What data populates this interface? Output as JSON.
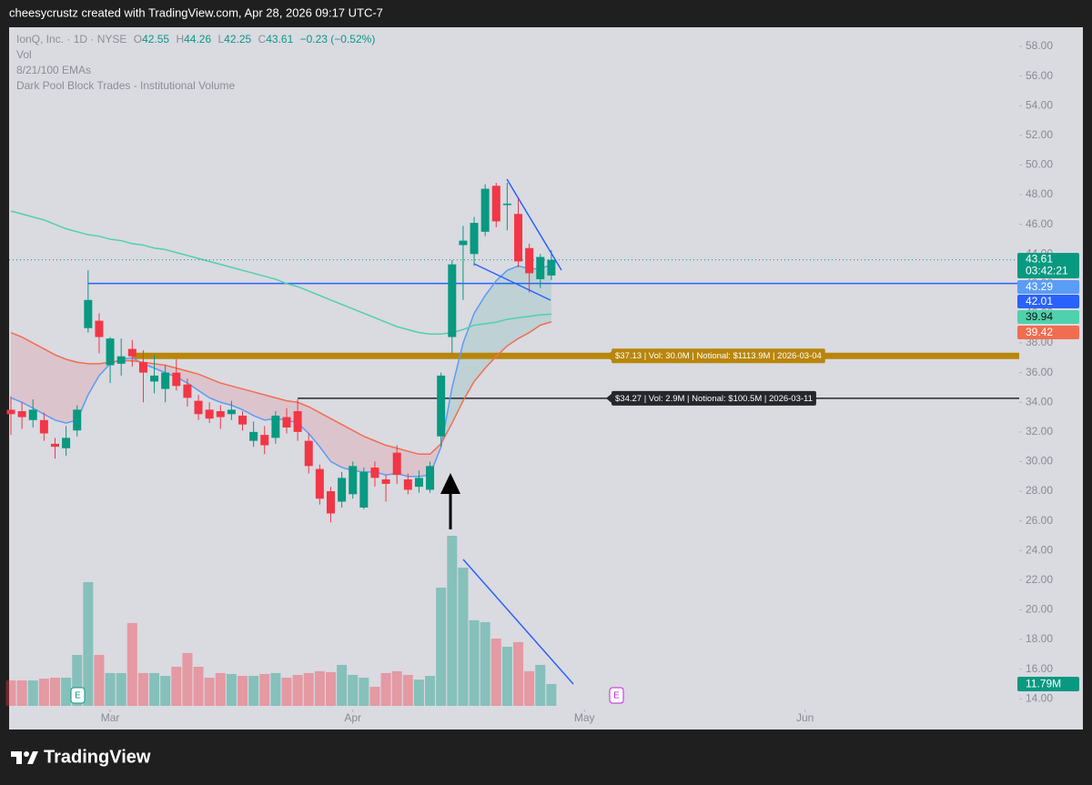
{
  "header": "cheesycrustz created with TradingView.com, Apr 28, 2026 09:17 UTC-7",
  "footer": "TradingView",
  "chart_data": {
    "type": "candlestick",
    "title": "IonQ, Inc. · 1D · NYSE",
    "ohlc_labels": [
      "O",
      "H",
      "L",
      "C"
    ],
    "change": "−0.23 (−0.52%)",
    "indicator_labels": [
      "Vol",
      "8/21/100 EMAs",
      "Dark Pool Block Trades - Institutional Volume"
    ],
    "countdown": "03:42:21",
    "annotations": [
      "E",
      "E"
    ],
    "up_color": "#089981",
    "down_color": "#f23645",
    "open": [
      33.5,
      33.4,
      32.8,
      32.8,
      31.2,
      30.9,
      32.1,
      39.0,
      39.5,
      36.5,
      36.6,
      37.6,
      36.7,
      35.4,
      34.9,
      36.0,
      35.2,
      34.1,
      33.5,
      33.4,
      33.2,
      33.1,
      31.4,
      31.8,
      31.6,
      33.0,
      33.4,
      31.4,
      29.5,
      28.0,
      27.3,
      27.8,
      26.9,
      29.6,
      28.8,
      30.6,
      28.8,
      28.3,
      28.1,
      31.7,
      38.4,
      44.6,
      44.0,
      45.5,
      48.6,
      47.3,
      46.7,
      44.4,
      42.3,
      42.55
    ],
    "high": [
      34.4,
      34.0,
      34.2,
      33.3,
      31.6,
      32.4,
      33.8,
      42.9,
      40.0,
      38.4,
      38.3,
      38.2,
      37.5,
      37.2,
      36.5,
      36.9,
      35.6,
      34.5,
      34.0,
      33.8,
      34.1,
      33.4,
      32.7,
      32.4,
      33.4,
      33.6,
      34.2,
      31.9,
      29.8,
      28.3,
      29.3,
      30.0,
      29.6,
      30.0,
      29.1,
      31.1,
      29.2,
      29.4,
      30.0,
      36.0,
      43.6,
      45.9,
      46.5,
      48.7,
      48.8,
      48.8,
      47.8,
      44.7,
      44.0,
      44.26
    ],
    "low": [
      31.8,
      32.2,
      32.3,
      31.4,
      30.2,
      30.4,
      31.7,
      38.7,
      37.3,
      35.3,
      35.8,
      36.4,
      34.0,
      34.6,
      34.0,
      34.8,
      33.7,
      32.8,
      32.6,
      32.2,
      32.8,
      32.1,
      31.0,
      30.5,
      31.2,
      31.9,
      31.4,
      29.2,
      27.1,
      25.9,
      26.9,
      27.5,
      26.8,
      28.3,
      27.3,
      28.5,
      27.8,
      27.9,
      27.9,
      31.0,
      37.3,
      40.9,
      43.2,
      45.2,
      45.8,
      45.6,
      43.1,
      41.4,
      41.7,
      42.25
    ],
    "close": [
      33.2,
      33.0,
      33.5,
      31.9,
      31.0,
      31.6,
      33.5,
      40.9,
      38.4,
      38.3,
      37.1,
      37.1,
      36.0,
      35.8,
      36.0,
      35.1,
      34.3,
      33.2,
      32.9,
      33.0,
      33.5,
      32.5,
      32.0,
      31.1,
      33.1,
      32.3,
      32.0,
      29.7,
      27.5,
      26.5,
      28.9,
      29.7,
      29.3,
      28.9,
      28.5,
      29.1,
      28.1,
      28.9,
      29.7,
      35.8,
      43.3,
      44.9,
      46.1,
      48.4,
      46.2,
      47.4,
      43.5,
      42.7,
      43.8,
      43.61
    ],
    "volume": {
      "values": [
        13.7,
        13.7,
        13.7,
        14.7,
        15.2,
        15.2,
        27.5,
        66.8,
        27.5,
        17.7,
        17.7,
        44.7,
        17.7,
        17.7,
        16.2,
        21.1,
        28.5,
        21.1,
        15.2,
        17.7,
        17.2,
        16.2,
        16.2,
        17.2,
        17.7,
        15.2,
        16.7,
        17.7,
        18.7,
        18.2,
        22.1,
        16.7,
        15.2,
        10.3,
        17.7,
        18.7,
        16.7,
        14.2,
        16.2,
        63.8,
        91.8,
        74.6,
        46.2,
        45.2,
        36.3,
        31.9,
        34.4,
        18.7,
        22.1,
        11.79
      ],
      "value_labels": [
        null,
        null,
        null,
        null,
        null,
        null,
        null,
        null,
        null,
        null,
        null,
        null,
        null,
        null,
        null,
        null,
        null,
        null,
        null,
        null,
        null,
        null,
        null,
        null,
        null,
        null,
        null,
        null,
        null,
        null,
        null,
        null,
        null,
        null,
        null,
        null,
        null,
        null,
        null,
        null,
        null,
        null,
        null,
        null,
        null,
        null,
        null,
        null,
        null,
        "11.79M"
      ]
    },
    "series": [
      {
        "color": "#5b9cf6",
        "values": [
          34.3,
          34.0,
          33.6,
          33.2,
          32.8,
          32.6,
          32.8,
          34.5,
          35.8,
          36.6,
          36.9,
          37.0,
          36.6,
          36.3,
          36.0,
          35.7,
          35.3,
          34.8,
          34.3,
          34.0,
          33.8,
          33.5,
          33.1,
          32.8,
          32.9,
          32.8,
          32.6,
          31.9,
          31.0,
          30.0,
          29.6,
          29.4,
          29.3,
          29.3,
          29.1,
          29.2,
          29.0,
          29.0,
          29.1,
          31.0,
          35.0,
          38.0,
          40.0,
          41.2,
          42.2,
          42.9,
          43.2,
          43.0,
          43.0,
          43.29
        ]
      },
      {
        "color": "#f26d4f",
        "values": [
          38.7,
          38.4,
          38.0,
          37.6,
          37.2,
          36.9,
          36.7,
          36.6,
          36.6,
          36.7,
          36.8,
          36.8,
          36.7,
          36.6,
          36.5,
          36.3,
          36.1,
          35.9,
          35.6,
          35.3,
          35.1,
          34.9,
          34.7,
          34.5,
          34.3,
          34.1,
          34.0,
          33.7,
          33.3,
          32.9,
          32.5,
          32.1,
          31.7,
          31.4,
          31.1,
          30.9,
          30.7,
          30.5,
          30.5,
          31.2,
          32.6,
          34.1,
          35.4,
          36.3,
          37.1,
          37.8,
          38.3,
          38.7,
          39.2,
          39.42
        ]
      },
      {
        "color": "#4fd1ad",
        "values": [
          46.9,
          46.7,
          46.5,
          46.3,
          46.0,
          45.7,
          45.5,
          45.3,
          45.2,
          45.0,
          44.9,
          44.7,
          44.6,
          44.4,
          44.3,
          44.1,
          43.9,
          43.7,
          43.5,
          43.3,
          43.1,
          42.9,
          42.7,
          42.5,
          42.3,
          42.0,
          41.8,
          41.5,
          41.2,
          40.9,
          40.6,
          40.3,
          40.0,
          39.7,
          39.4,
          39.1,
          38.9,
          38.7,
          38.6,
          38.6,
          38.7,
          38.9,
          39.2,
          39.3,
          39.4,
          39.6,
          39.7,
          39.8,
          39.9,
          39.94
        ]
      }
    ],
    "levels": [
      {
        "value": 42.01,
        "color": "#2962ff"
      },
      {
        "value": 37.13,
        "color": "#b8860b",
        "label": "$37.13 | Vol: 30.0M | Notional: $1113.9M | 2026-03-04"
      },
      {
        "value": 34.27,
        "color": "#26262b",
        "label": "$34.27 | Vol: 2.9M | Notional: $100.5M | 2026-03-11"
      }
    ],
    "xlim": [
      -0.165,
      91.42
    ],
    "xticks": [
      {
        "value": 9,
        "label": "Mar"
      },
      {
        "value": 31,
        "label": "Apr"
      },
      {
        "value": 52,
        "label": "May"
      },
      {
        "value": 72,
        "label": "Jun"
      }
    ],
    "ylim": [
      13.28,
      59.29
    ],
    "yticks": [
      {
        "value": 14,
        "label": "14.00"
      },
      {
        "value": 16,
        "label": "16.00"
      },
      {
        "value": 18,
        "label": "18.00"
      },
      {
        "value": 20,
        "label": "20.00"
      },
      {
        "value": 22,
        "label": "22.00"
      },
      {
        "value": 24,
        "label": "24.00"
      },
      {
        "value": 26,
        "label": "26.00"
      },
      {
        "value": 28,
        "label": "28.00"
      },
      {
        "value": 30,
        "label": "30.00"
      },
      {
        "value": 32,
        "label": "32.00"
      },
      {
        "value": 34,
        "label": "34.00"
      },
      {
        "value": 36,
        "label": "36.00"
      },
      {
        "value": 38,
        "label": "38.00"
      },
      {
        "value": 40,
        "label": "40.00"
      },
      {
        "value": 42,
        "label": "42.00"
      },
      {
        "value": 44,
        "label": "44.00"
      },
      {
        "value": 46,
        "label": "46.00"
      },
      {
        "value": 48,
        "label": "48.00"
      },
      {
        "value": 50,
        "label": "50.00"
      },
      {
        "value": 52,
        "label": "52.00"
      },
      {
        "value": 54,
        "label": "54.00"
      },
      {
        "value": 56,
        "label": "56.00"
      },
      {
        "value": 58,
        "label": "58.00"
      }
    ]
  }
}
